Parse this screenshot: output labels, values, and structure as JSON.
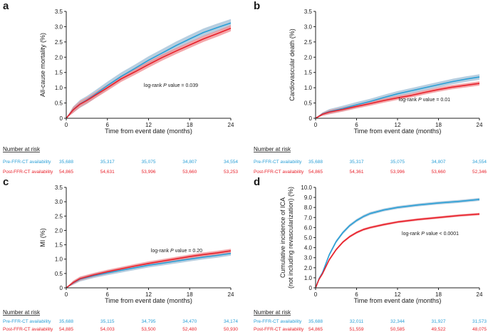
{
  "colors": {
    "pre": "#2a9fd6",
    "pre_band": "#9dbdd6",
    "post": "#e8202a",
    "post_band": "#f08a8e",
    "axis": "#222222",
    "text": "#1a1a1a"
  },
  "chart_data": [
    {
      "type": "line",
      "panel": "a",
      "ylabel": "All-cause mortality (%)",
      "xlabel": "Time from event date (months)",
      "ylim": [
        0,
        3.5
      ],
      "yticks": [
        "0",
        "0.5",
        "1.0",
        "1.5",
        "2.0",
        "2.5",
        "3.0",
        "3.5"
      ],
      "xlim": [
        0,
        24
      ],
      "xticks": [
        "0",
        "6",
        "12",
        "18",
        "24"
      ],
      "annotation": {
        "prefix": "log-rank ",
        "p": "P",
        "suffix": " value = 0.039"
      },
      "series": [
        {
          "name": "Pre-FFR-CT availability",
          "x": [
            0,
            1,
            2,
            3,
            4,
            6,
            8,
            10,
            12,
            14,
            16,
            18,
            20,
            22,
            24
          ],
          "values": [
            0,
            0.28,
            0.47,
            0.6,
            0.75,
            1.07,
            1.37,
            1.63,
            1.9,
            2.14,
            2.38,
            2.6,
            2.81,
            2.97,
            3.12
          ],
          "band": 0.13
        },
        {
          "name": "Post-FFR-CT availability",
          "x": [
            0,
            1,
            2,
            3,
            4,
            6,
            8,
            10,
            12,
            14,
            16,
            18,
            20,
            22,
            24
          ],
          "values": [
            0,
            0.27,
            0.46,
            0.58,
            0.72,
            1.0,
            1.29,
            1.52,
            1.76,
            1.99,
            2.2,
            2.4,
            2.6,
            2.77,
            2.95
          ],
          "band": 0.1
        }
      ],
      "risk": {
        "title": "Number at risk",
        "rows": [
          {
            "label": "Pre-FFR-CT availability",
            "values": [
              "35,688",
              "35,317",
              "35,075",
              "34,807",
              "34,554"
            ]
          },
          {
            "label": "Post-FFR-CT availability",
            "values": [
              "54,865",
              "54,631",
              "53,996",
              "53,660",
              "53,253"
            ]
          }
        ]
      }
    },
    {
      "type": "line",
      "panel": "b",
      "ylabel": "Cardiovascular death (%)",
      "xlabel": "Time from event date (months)",
      "ylim": [
        0,
        3.5
      ],
      "yticks": [
        "0",
        "0.5",
        "1.0",
        "1.5",
        "2.0",
        "2.5",
        "3.0",
        "3.5"
      ],
      "xlim": [
        0,
        24
      ],
      "xticks": [
        "0",
        "6",
        "12",
        "18",
        "24"
      ],
      "annotation": {
        "prefix": "log-rank ",
        "p": "P",
        "suffix": " value = 0.01"
      },
      "series": [
        {
          "name": "Pre-FFR-CT availability",
          "x": [
            0,
            1,
            2,
            4,
            6,
            8,
            10,
            12,
            14,
            16,
            18,
            20,
            22,
            24
          ],
          "values": [
            0,
            0.14,
            0.22,
            0.32,
            0.44,
            0.55,
            0.68,
            0.8,
            0.9,
            1.0,
            1.1,
            1.2,
            1.28,
            1.35
          ],
          "band": 0.09
        },
        {
          "name": "Post-FFR-CT availability",
          "x": [
            0,
            1,
            2,
            4,
            6,
            8,
            10,
            12,
            14,
            16,
            18,
            20,
            22,
            24
          ],
          "values": [
            0,
            0.13,
            0.2,
            0.29,
            0.39,
            0.48,
            0.58,
            0.67,
            0.75,
            0.85,
            0.94,
            1.02,
            1.08,
            1.14
          ],
          "band": 0.07
        }
      ],
      "risk": {
        "title": "Number at risk",
        "rows": [
          {
            "label": "Pre-FFR-CT availability",
            "values": [
              "35,688",
              "35,317",
              "35,075",
              "34,807",
              "34,554"
            ]
          },
          {
            "label": "Post-FFR-CT availability",
            "values": [
              "54,865",
              "54,361",
              "53,996",
              "53,660",
              "52,346"
            ]
          }
        ]
      }
    },
    {
      "type": "line",
      "panel": "c",
      "ylabel": "MI (%)",
      "xlabel": "Time from event date (months)",
      "ylim": [
        0,
        3.5
      ],
      "yticks": [
        "0",
        "0.5",
        "1.0",
        "1.5",
        "2.0",
        "2.5",
        "3.0",
        "3.5"
      ],
      "xlim": [
        0,
        24
      ],
      "xticks": [
        "0",
        "6",
        "12",
        "18",
        "24"
      ],
      "annotation": {
        "prefix": "log-rank ",
        "p": "P",
        "suffix": " value = 0.20"
      },
      "series": [
        {
          "name": "Pre-FFR-CT availability",
          "x": [
            0,
            1,
            2,
            4,
            6,
            8,
            10,
            12,
            14,
            16,
            18,
            20,
            22,
            24
          ],
          "values": [
            0,
            0.17,
            0.3,
            0.42,
            0.52,
            0.61,
            0.7,
            0.79,
            0.86,
            0.93,
            1.0,
            1.07,
            1.13,
            1.2
          ],
          "band": 0.08
        },
        {
          "name": "Post-FFR-CT availability",
          "x": [
            0,
            1,
            2,
            4,
            6,
            8,
            10,
            12,
            14,
            16,
            18,
            20,
            22,
            24
          ],
          "values": [
            0,
            0.18,
            0.32,
            0.45,
            0.56,
            0.66,
            0.76,
            0.85,
            0.93,
            1.01,
            1.09,
            1.16,
            1.22,
            1.29
          ],
          "band": 0.07
        }
      ],
      "risk": {
        "title": "Number at risk",
        "rows": [
          {
            "label": "Pre-FFR-CT availability",
            "values": [
              "35,688",
              "35,115",
              "34,795",
              "34,470",
              "34,174"
            ]
          },
          {
            "label": "Post-FFR-CT availability",
            "values": [
              "54,885",
              "54,003",
              "53,500",
              "52,480",
              "50,930"
            ]
          }
        ]
      }
    },
    {
      "type": "line",
      "panel": "d",
      "ylabel": "Cumulative incidence of ICA",
      "ylabel2": "(not including revascularization) (%)",
      "xlabel": "Time from event date (months)",
      "ylim": [
        0,
        10
      ],
      "yticks": [
        "0",
        "1.0",
        "2.0",
        "3.0",
        "4.0",
        "5.0",
        "6.0",
        "7.0",
        "8.0",
        "9.0",
        "10.0"
      ],
      "xlim": [
        0,
        24
      ],
      "xticks": [
        "0",
        "6",
        "12",
        "18",
        "24"
      ],
      "annotation": {
        "prefix": "log-rank ",
        "p": "P",
        "suffix": " value < 0.0001"
      },
      "series": [
        {
          "name": "Pre-FFR-CT availability",
          "x": [
            0,
            0.5,
            1,
            1.5,
            2,
            3,
            4,
            5,
            6,
            7,
            8,
            10,
            12,
            15,
            18,
            21,
            24
          ],
          "values": [
            0,
            0.9,
            1.5,
            2.4,
            3.3,
            4.6,
            5.5,
            6.2,
            6.7,
            7.1,
            7.4,
            7.75,
            8.0,
            8.25,
            8.45,
            8.6,
            8.8
          ],
          "band": 0.15
        },
        {
          "name": "Post-FFR-CT availability",
          "x": [
            0,
            0.5,
            1,
            1.5,
            2,
            3,
            4,
            5,
            6,
            7,
            8,
            10,
            12,
            15,
            18,
            21,
            24
          ],
          "values": [
            0,
            0.85,
            1.4,
            2.1,
            2.8,
            3.8,
            4.55,
            5.1,
            5.5,
            5.8,
            6.0,
            6.3,
            6.55,
            6.8,
            7.0,
            7.2,
            7.35
          ],
          "band": 0.12
        }
      ],
      "risk": {
        "title": "Number at risk",
        "rows": [
          {
            "label": "Pre-FFR-CT availability",
            "values": [
              "35,688",
              "32,011",
              "32,344",
              "31,927",
              "31,573"
            ]
          },
          {
            "label": "Post-FFR-CT availability",
            "values": [
              "54,865",
              "51,559",
              "50,585",
              "49,522",
              "48,075"
            ]
          }
        ]
      }
    }
  ]
}
